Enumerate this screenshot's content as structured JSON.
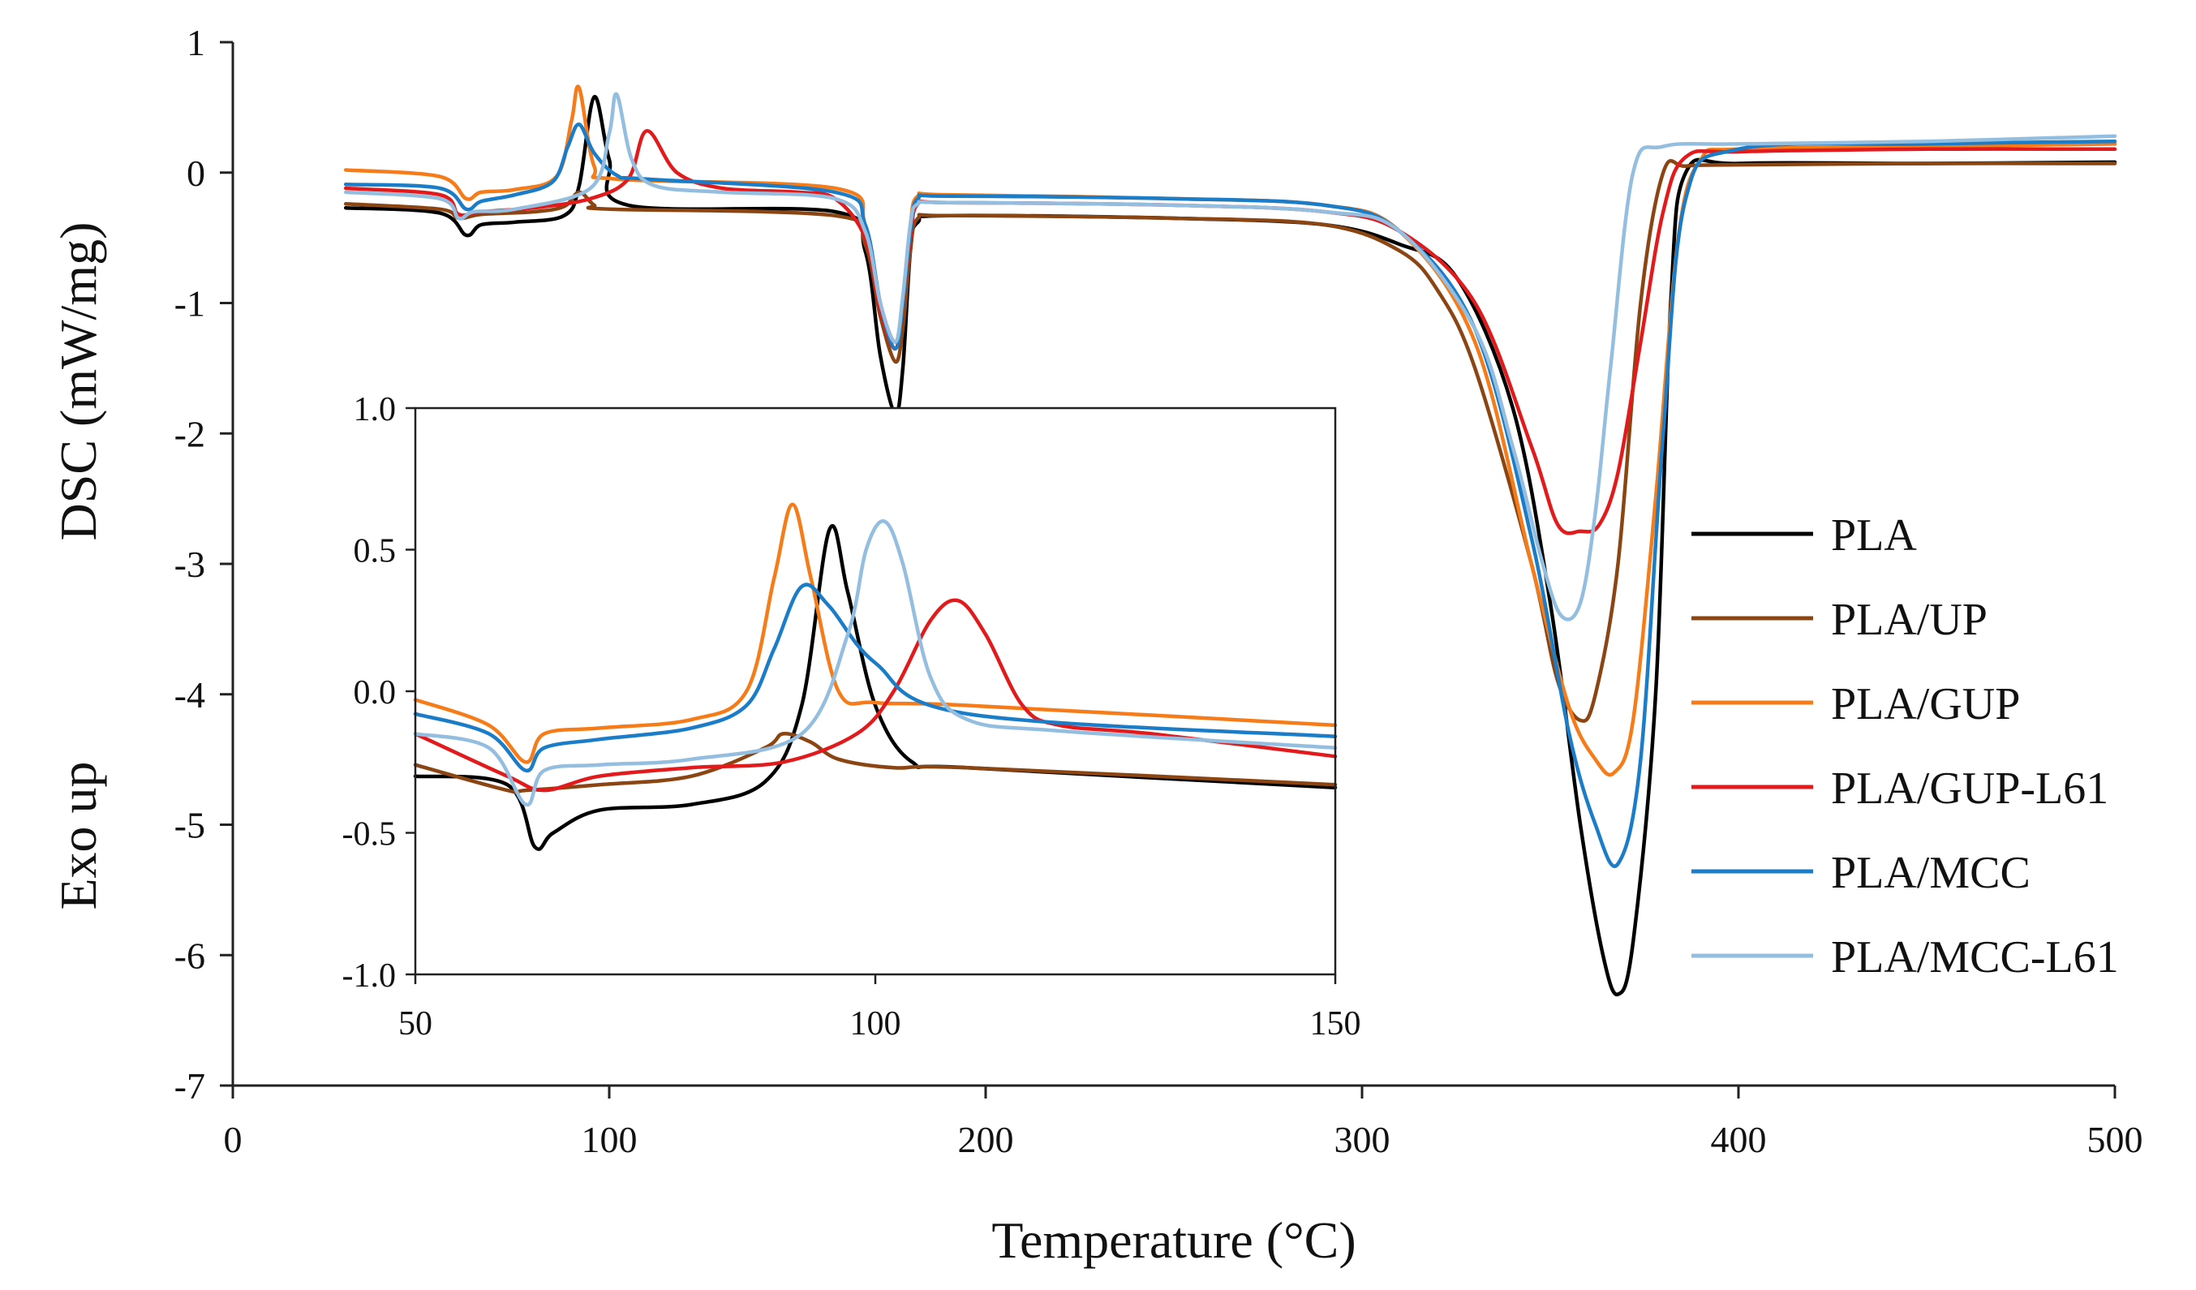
{
  "chart_data": [
    {
      "type": "line",
      "name": "main",
      "xlabel": "Temperature (°C)",
      "ylabel": "DSC (mW/mg)",
      "ylabel2": "Exo up",
      "xlim": [
        0,
        500
      ],
      "ylim": [
        -7,
        1
      ],
      "xticks": [
        "0",
        "100",
        "200",
        "300",
        "400",
        "500"
      ],
      "yticks": [
        "1",
        "0",
        "-1",
        "-2",
        "-3",
        "-4",
        "-5",
        "-6",
        "-7"
      ],
      "series": [
        {
          "name": "PLA",
          "color": "#000000",
          "x": [
            30,
            55,
            62,
            66,
            75,
            88,
            92,
            96,
            100,
            105,
            160,
            168,
            172,
            176,
            178,
            180,
            182,
            190,
            250,
            290,
            310,
            325,
            340,
            350,
            358,
            364,
            368,
            372,
            378,
            382,
            386,
            400,
            450,
            500
          ],
          "y": [
            -0.27,
            -0.31,
            -0.48,
            -0.4,
            -0.38,
            -0.33,
            -0.1,
            0.58,
            0.1,
            -0.25,
            -0.3,
            -0.6,
            -1.4,
            -1.85,
            -1.5,
            -0.6,
            -0.38,
            -0.33,
            -0.35,
            -0.4,
            -0.55,
            -0.8,
            -1.8,
            -3.3,
            -5.0,
            -6.0,
            -6.3,
            -5.9,
            -4.0,
            -1.0,
            0.0,
            0.07,
            0.07,
            0.08
          ]
        },
        {
          "name": "PLA/UP",
          "color": "#8B4513",
          "x": [
            30,
            55,
            60,
            66,
            80,
            88,
            92,
            96,
            100,
            160,
            168,
            172,
            176,
            178,
            180,
            182,
            190,
            250,
            290,
            310,
            320,
            330,
            345,
            352,
            358,
            362,
            368,
            374,
            380,
            386,
            400,
            450,
            500
          ],
          "y": [
            -0.24,
            -0.28,
            -0.35,
            -0.32,
            -0.3,
            -0.26,
            -0.15,
            -0.25,
            -0.28,
            -0.33,
            -0.55,
            -1.1,
            -1.45,
            -1.2,
            -0.6,
            -0.35,
            -0.33,
            -0.35,
            -0.4,
            -0.6,
            -0.9,
            -1.5,
            -3.0,
            -3.9,
            -4.2,
            -4.0,
            -3.0,
            -1.0,
            0.0,
            0.05,
            0.06,
            0.07,
            0.07
          ]
        },
        {
          "name": "PLA/GUP",
          "color": "#F57C18",
          "x": [
            30,
            55,
            62,
            66,
            75,
            86,
            90,
            92,
            96,
            102,
            160,
            168,
            172,
            176,
            178,
            180,
            182,
            190,
            250,
            290,
            310,
            330,
            345,
            355,
            362,
            367,
            372,
            378,
            384,
            390,
            400,
            450,
            500
          ],
          "y": [
            0.02,
            -0.03,
            -0.2,
            -0.15,
            -0.13,
            -0.03,
            0.4,
            0.65,
            0.05,
            -0.05,
            -0.12,
            -0.4,
            -1.0,
            -1.3,
            -1.0,
            -0.4,
            -0.18,
            -0.17,
            -0.2,
            -0.25,
            -0.45,
            -1.3,
            -3.0,
            -4.1,
            -4.5,
            -4.6,
            -4.2,
            -2.5,
            -0.5,
            0.1,
            0.18,
            0.2,
            0.22
          ]
        },
        {
          "name": "PLA/GUP-L61",
          "color": "#E31A1C",
          "x": [
            30,
            55,
            60,
            66,
            80,
            95,
            105,
            110,
            118,
            130,
            150,
            160,
            168,
            172,
            176,
            178,
            180,
            182,
            190,
            250,
            290,
            310,
            330,
            345,
            352,
            358,
            363,
            368,
            374,
            380,
            386,
            400,
            450,
            500
          ],
          "y": [
            -0.12,
            -0.17,
            -0.32,
            -0.3,
            -0.27,
            -0.2,
            -0.05,
            0.32,
            0.0,
            -0.12,
            -0.15,
            -0.2,
            -0.5,
            -1.05,
            -1.35,
            -1.0,
            -0.5,
            -0.24,
            -0.23,
            -0.25,
            -0.3,
            -0.45,
            -1.0,
            -2.1,
            -2.7,
            -2.75,
            -2.7,
            -2.3,
            -1.3,
            -0.3,
            0.12,
            0.16,
            0.18,
            0.18
          ]
        },
        {
          "name": "PLA/MCC",
          "color": "#1B7CC8",
          "x": [
            30,
            55,
            62,
            66,
            75,
            85,
            89,
            92,
            96,
            102,
            110,
            160,
            168,
            172,
            176,
            178,
            180,
            182,
            190,
            250,
            290,
            310,
            330,
            345,
            355,
            362,
            368,
            374,
            380,
            386,
            400,
            450,
            500
          ],
          "y": [
            -0.09,
            -0.12,
            -0.28,
            -0.22,
            -0.17,
            -0.07,
            0.2,
            0.37,
            0.15,
            -0.02,
            -0.05,
            -0.15,
            -0.4,
            -1.0,
            -1.35,
            -1.0,
            -0.45,
            -0.2,
            -0.18,
            -0.2,
            -0.25,
            -0.45,
            -1.2,
            -2.8,
            -4.3,
            -5.0,
            -5.3,
            -4.5,
            -2.0,
            -0.2,
            0.18,
            0.22,
            0.24
          ]
        },
        {
          "name": "PLA/MCC-L61",
          "color": "#94BEE0",
          "x": [
            30,
            55,
            60,
            64,
            75,
            95,
            100,
            102,
            106,
            112,
            130,
            160,
            168,
            172,
            176,
            178,
            180,
            182,
            190,
            250,
            290,
            310,
            330,
            340,
            348,
            353,
            358,
            362,
            366,
            372,
            380,
            400,
            450,
            500
          ],
          "y": [
            -0.15,
            -0.2,
            -0.35,
            -0.3,
            -0.28,
            -0.12,
            0.3,
            0.6,
            0.1,
            -0.1,
            -0.15,
            -0.2,
            -0.45,
            -1.0,
            -1.3,
            -0.95,
            -0.4,
            -0.24,
            -0.23,
            -0.25,
            -0.3,
            -0.45,
            -1.2,
            -2.1,
            -3.0,
            -3.4,
            -3.3,
            -2.6,
            -1.5,
            0.0,
            0.2,
            0.22,
            0.24,
            0.28
          ]
        }
      ]
    },
    {
      "type": "line",
      "name": "inset",
      "xlim": [
        50,
        150
      ],
      "ylim": [
        -1.0,
        1.0
      ],
      "xticks": [
        "50",
        "100",
        "150"
      ],
      "yticks": [
        "1.0",
        "0.5",
        "0.0",
        "-0.5",
        "-1.0"
      ],
      "series": [
        {
          "name": "PLA",
          "color": "#000000",
          "x": [
            50,
            60,
            63,
            65,
            70,
            80,
            88,
            92,
            95,
            97,
            100,
            104,
            110,
            150
          ],
          "y": [
            -0.3,
            -0.33,
            -0.55,
            -0.5,
            -0.42,
            -0.4,
            -0.32,
            -0.05,
            0.57,
            0.35,
            -0.05,
            -0.25,
            -0.27,
            -0.34
          ]
        },
        {
          "name": "PLA/UP",
          "color": "#8B4513",
          "x": [
            50,
            60,
            62,
            70,
            80,
            88,
            90,
            93,
            96,
            102,
            110,
            150
          ],
          "y": [
            -0.26,
            -0.35,
            -0.35,
            -0.33,
            -0.3,
            -0.2,
            -0.15,
            -0.18,
            -0.24,
            -0.27,
            -0.27,
            -0.33
          ]
        },
        {
          "name": "PLA/GUP",
          "color": "#F57C18",
          "x": [
            50,
            58,
            62,
            64,
            70,
            80,
            86,
            89,
            91,
            93,
            96,
            100,
            110,
            150
          ],
          "y": [
            -0.03,
            -0.12,
            -0.25,
            -0.15,
            -0.13,
            -0.1,
            0.0,
            0.4,
            0.66,
            0.4,
            0.0,
            -0.04,
            -0.05,
            -0.12
          ]
        },
        {
          "name": "PLA/GUP-L61",
          "color": "#E31A1C",
          "x": [
            50,
            60,
            64,
            70,
            80,
            90,
            98,
            102,
            106,
            109,
            112,
            116,
            120,
            130,
            150
          ],
          "y": [
            -0.15,
            -0.3,
            -0.35,
            -0.3,
            -0.27,
            -0.25,
            -0.15,
            0.0,
            0.25,
            0.32,
            0.2,
            -0.05,
            -0.12,
            -0.15,
            -0.23
          ]
        },
        {
          "name": "PLA/MCC",
          "color": "#1B7CC8",
          "x": [
            50,
            58,
            62,
            64,
            70,
            80,
            86,
            89,
            92,
            95,
            100,
            110,
            150
          ],
          "y": [
            -0.08,
            -0.15,
            -0.28,
            -0.2,
            -0.17,
            -0.13,
            -0.05,
            0.15,
            0.37,
            0.3,
            0.1,
            -0.08,
            -0.16
          ]
        },
        {
          "name": "PLA/MCC-L61",
          "color": "#94BEE0",
          "x": [
            50,
            58,
            62,
            64,
            70,
            80,
            92,
            97,
            99,
            101,
            103,
            106,
            110,
            120,
            150
          ],
          "y": [
            -0.15,
            -0.2,
            -0.4,
            -0.28,
            -0.26,
            -0.24,
            -0.15,
            0.2,
            0.5,
            0.6,
            0.45,
            0.05,
            -0.1,
            -0.14,
            -0.2
          ]
        }
      ]
    }
  ]
}
